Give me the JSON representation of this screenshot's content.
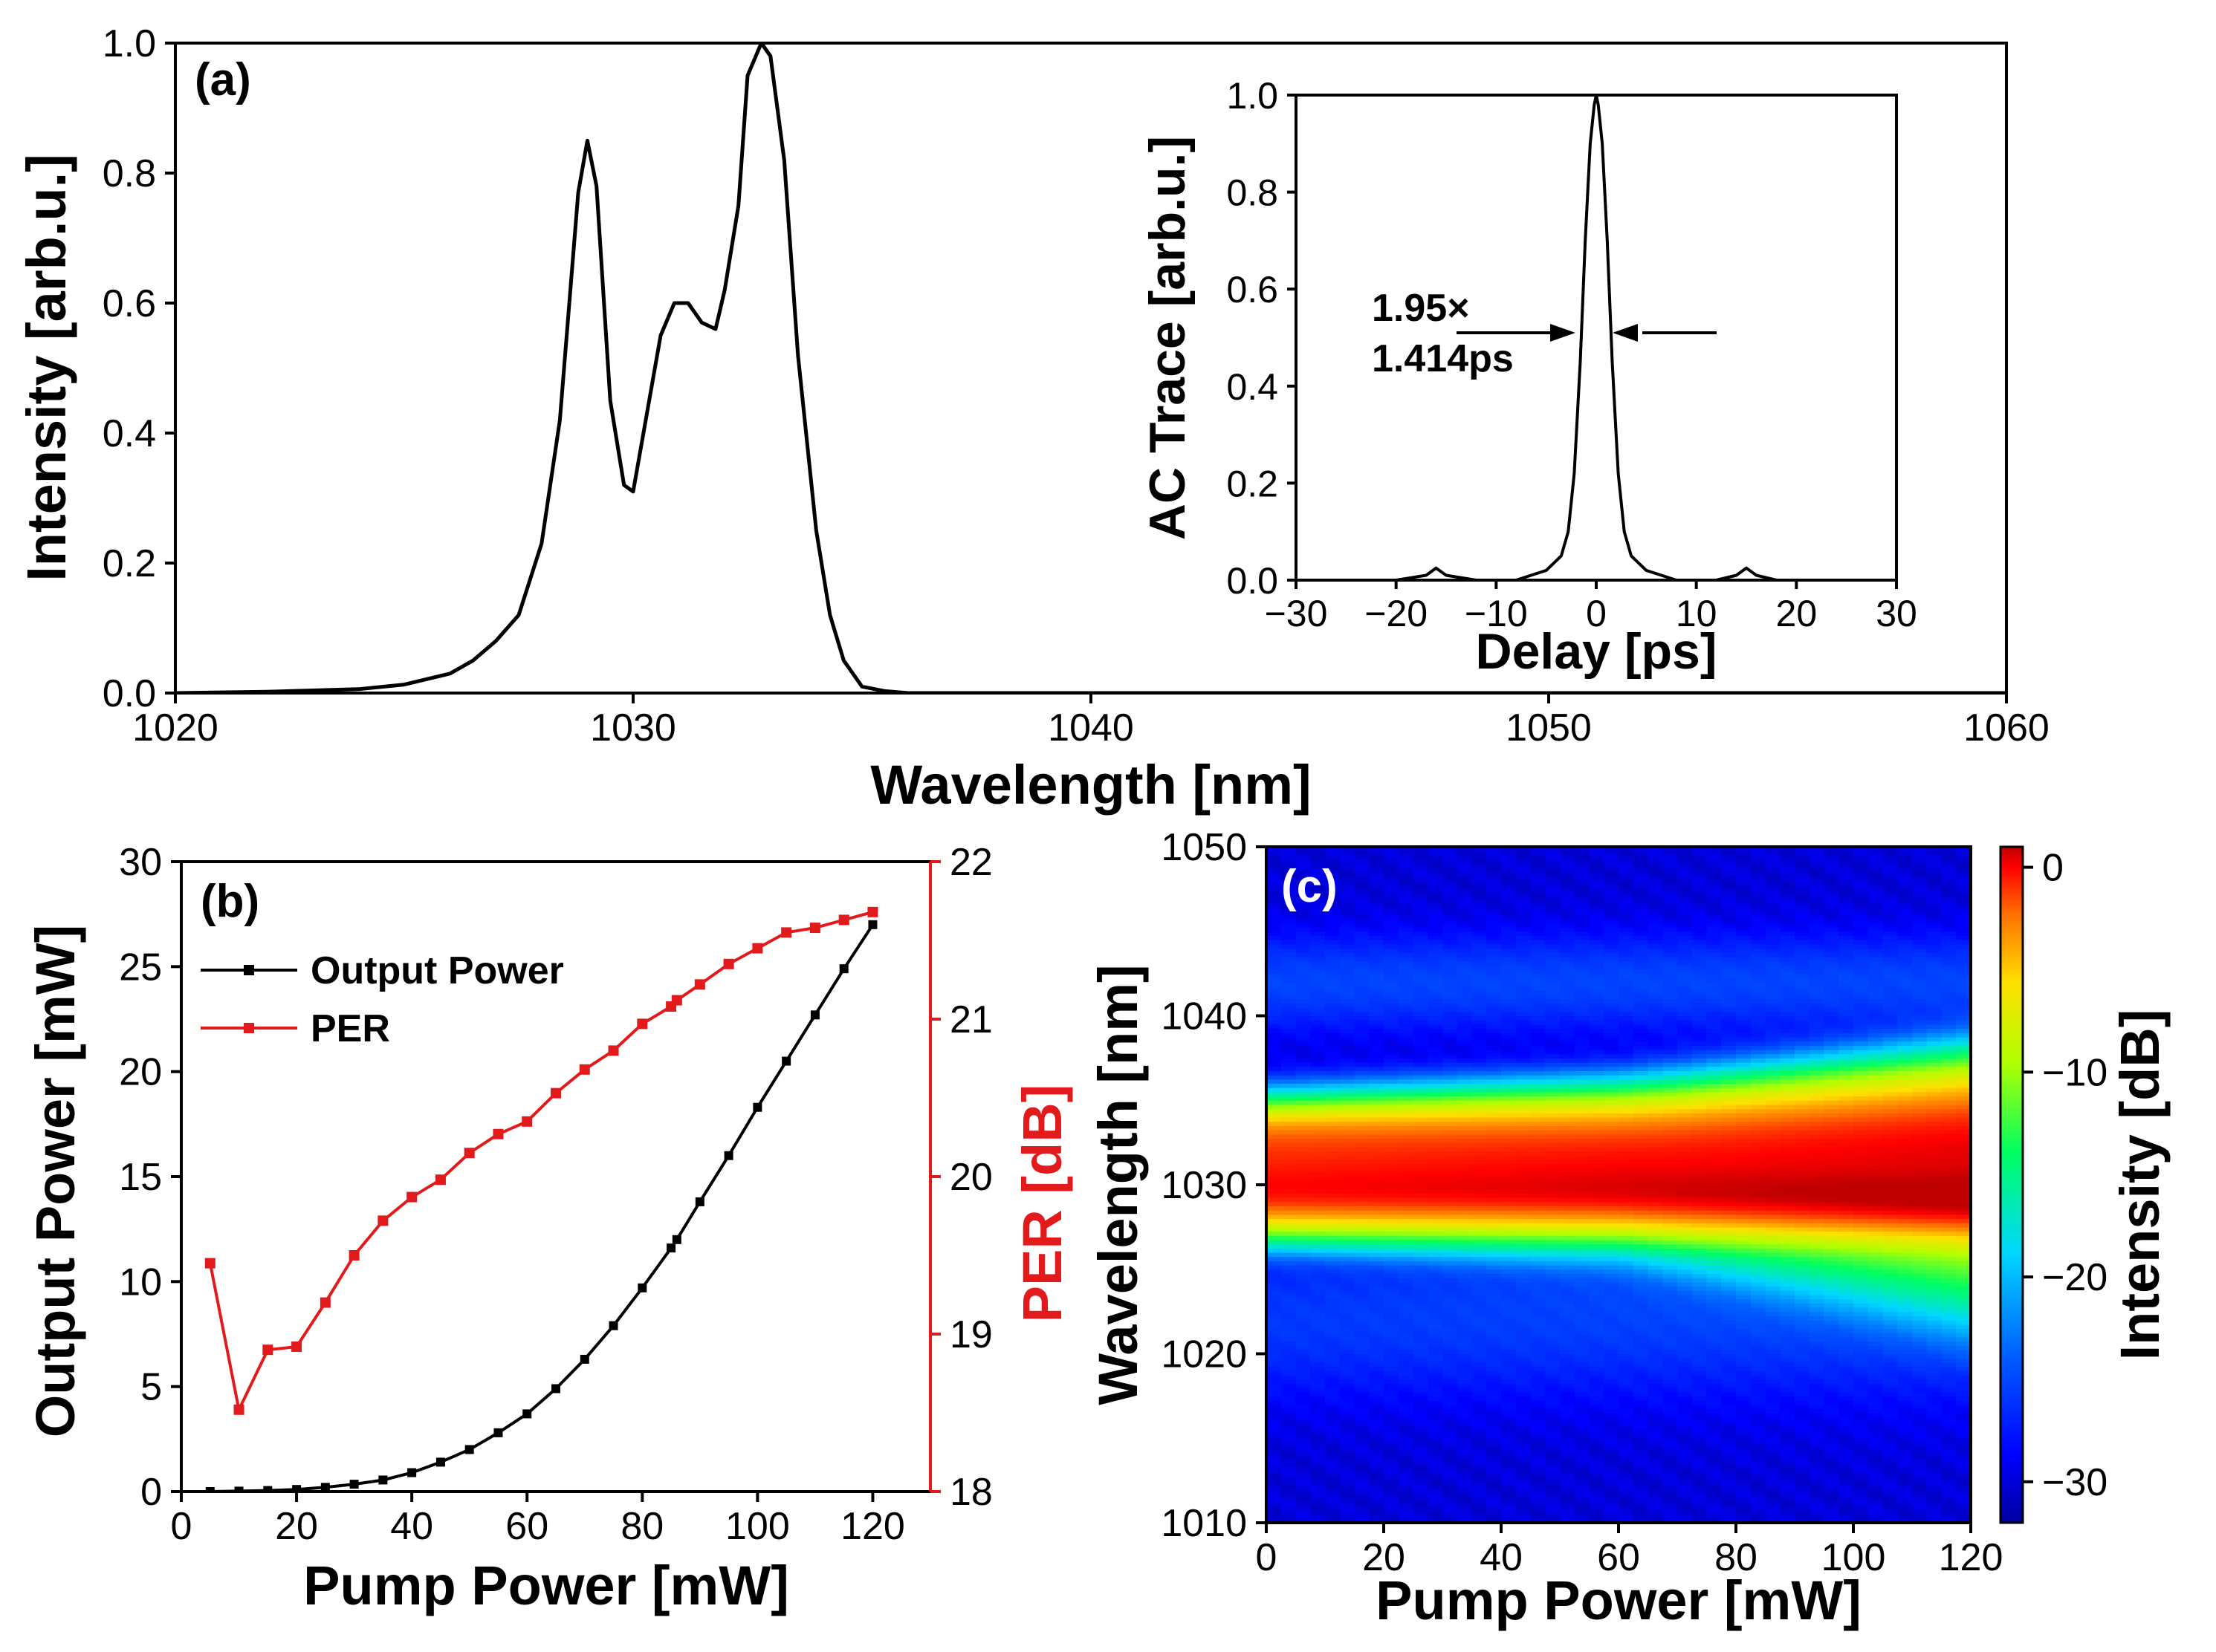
{
  "chart_data": [
    {
      "panel": "(a)",
      "type": "line",
      "title": "",
      "xlabel": "Wavelength [nm]",
      "ylabel": "Intensity [arb.u.]",
      "xlim": [
        1020,
        1060
      ],
      "ylim": [
        0,
        1.0
      ],
      "xticks": [
        1020,
        1030,
        1040,
        1050,
        1060
      ],
      "yticks": [
        0.0,
        0.2,
        0.4,
        0.6,
        0.8,
        1.0
      ],
      "series": [
        {
          "name": "Spectrum",
          "color": "#000000",
          "x": [
            1020,
            1022,
            1024,
            1025,
            1026,
            1026.5,
            1027,
            1027.5,
            1028,
            1028.4,
            1028.8,
            1029.0,
            1029.2,
            1029.5,
            1029.8,
            1030.0,
            1030.3,
            1030.6,
            1030.9,
            1031.2,
            1031.5,
            1031.8,
            1032.0,
            1032.3,
            1032.5,
            1032.8,
            1033.0,
            1033.3,
            1033.6,
            1034.0,
            1034.3,
            1034.6,
            1035.0,
            1035.5,
            1036,
            1037,
            1040,
            1060
          ],
          "y": [
            0.0,
            0.002,
            0.006,
            0.013,
            0.03,
            0.05,
            0.08,
            0.12,
            0.23,
            0.42,
            0.77,
            0.85,
            0.78,
            0.45,
            0.32,
            0.31,
            0.43,
            0.55,
            0.6,
            0.6,
            0.57,
            0.56,
            0.62,
            0.75,
            0.95,
            1.0,
            0.98,
            0.82,
            0.52,
            0.25,
            0.12,
            0.05,
            0.01,
            0.003,
            0.0,
            0.0,
            0.0,
            0.0
          ]
        }
      ]
    },
    {
      "panel": "(a) inset",
      "type": "line",
      "xlabel": "Delay [ps]",
      "ylabel": "AC Trace [arb.u.]",
      "xlim": [
        -30,
        30
      ],
      "ylim": [
        0,
        1.0
      ],
      "xticks": [
        -30,
        -20,
        -10,
        0,
        10,
        20,
        30
      ],
      "yticks": [
        0.0,
        0.2,
        0.4,
        0.6,
        0.8,
        1.0
      ],
      "annotation": [
        "1.95×",
        "1.414ps"
      ],
      "series": [
        {
          "name": "AC Trace",
          "color": "#000000",
          "x": [
            -30,
            -20,
            -17,
            -16,
            -15,
            -12,
            -8,
            -5,
            -3.5,
            -2.8,
            -2.2,
            -1.6,
            -1.1,
            -0.6,
            -0.2,
            0,
            0.2,
            0.6,
            1.1,
            1.6,
            2.2,
            2.8,
            3.5,
            5,
            8,
            12,
            14,
            15,
            16,
            18,
            20,
            30
          ],
          "y": [
            0.0,
            0.0,
            0.01,
            0.025,
            0.01,
            0.0,
            0.0,
            0.02,
            0.05,
            0.1,
            0.22,
            0.45,
            0.7,
            0.9,
            0.98,
            1.0,
            0.98,
            0.9,
            0.7,
            0.45,
            0.22,
            0.1,
            0.05,
            0.02,
            0.0,
            0.0,
            0.01,
            0.025,
            0.01,
            0.0,
            0.0,
            0.0
          ]
        }
      ]
    },
    {
      "panel": "(b)",
      "type": "line",
      "xlabel": "Pump Power [mW]",
      "ylabel": "Output Power [mW]",
      "ylabel_right": "PER [dB]",
      "xlim": [
        0,
        130
      ],
      "ylim": [
        0,
        30
      ],
      "ylim_right": [
        18,
        22
      ],
      "xticks": [
        0,
        20,
        40,
        60,
        80,
        100,
        120
      ],
      "yticks": [
        0,
        5,
        10,
        15,
        20,
        25,
        30
      ],
      "yticks_right": [
        18,
        19,
        20,
        21,
        22
      ],
      "legend": [
        "Output Power",
        "PER"
      ],
      "series": [
        {
          "name": "Output Power",
          "color": "#000000",
          "axis": "left",
          "x": [
            5,
            10,
            15,
            20,
            25,
            30,
            35,
            40,
            45,
            50,
            55,
            60,
            65,
            70,
            75,
            80,
            85,
            86,
            90,
            95,
            100,
            105,
            110,
            115,
            120
          ],
          "y": [
            0.0,
            0.02,
            0.05,
            0.1,
            0.2,
            0.35,
            0.55,
            0.9,
            1.4,
            2.0,
            2.8,
            3.7,
            4.9,
            6.3,
            7.9,
            9.7,
            11.6,
            12.0,
            13.8,
            16.0,
            18.3,
            20.5,
            22.7,
            24.9,
            27.0
          ]
        },
        {
          "name": "PER",
          "color": "#e31a1c",
          "axis": "right",
          "x": [
            5,
            10,
            15,
            20,
            25,
            30,
            35,
            40,
            45,
            50,
            55,
            60,
            65,
            70,
            75,
            80,
            85,
            86,
            90,
            95,
            100,
            105,
            110,
            115,
            120
          ],
          "y": [
            19.45,
            18.52,
            18.9,
            18.92,
            19.2,
            19.5,
            19.72,
            19.87,
            19.98,
            20.15,
            20.27,
            20.35,
            20.53,
            20.68,
            20.8,
            20.97,
            21.08,
            21.12,
            21.22,
            21.35,
            21.45,
            21.55,
            21.58,
            21.63,
            21.68
          ]
        }
      ]
    },
    {
      "panel": "(c)",
      "type": "heatmap",
      "xlabel": "Pump Power [mW]",
      "ylabel": "Wavelength [nm]",
      "colorbar_label": "Intensity [dB]",
      "xlim": [
        0,
        120
      ],
      "ylim": [
        1010,
        1050
      ],
      "zlim": [
        -32,
        1
      ],
      "xticks": [
        0,
        20,
        40,
        60,
        80,
        100,
        120
      ],
      "yticks": [
        1010,
        1020,
        1030,
        1040,
        1050
      ],
      "colorbar_ticks": [
        0,
        -10,
        -20,
        -30
      ],
      "colormap": [
        "#0000a0",
        "#0000ff",
        "#0060ff",
        "#00d8ff",
        "#00ff60",
        "#b0ff00",
        "#ffe000",
        "#ff7000",
        "#ff0000",
        "#c00000"
      ],
      "model": {
        "background_db": -30,
        "bands": [
          {
            "center": [
              [
                0,
                1031.0
              ],
              [
                120,
                1031.5
              ]
            ],
            "width": [
              [
                0,
                2.2
              ],
              [
                60,
                2.4
              ],
              [
                120,
                3.2
              ]
            ],
            "peak_db": [
              [
                0,
                -1
              ],
              [
                120,
                0
              ]
            ]
          },
          {
            "center": [
              [
                0,
                1029.3
              ],
              [
                60,
                1029.3
              ],
              [
                120,
                1029.0
              ]
            ],
            "width": [
              [
                0,
                1.3
              ],
              [
                120,
                1.5
              ]
            ],
            "peak_db": [
              [
                0,
                -4
              ],
              [
                120,
                -1
              ]
            ]
          },
          {
            "center": [
              [
                0,
                1033.0
              ],
              [
                60,
                1033.3
              ],
              [
                120,
                1034.2
              ]
            ],
            "width": [
              [
                0,
                1.2
              ],
              [
                70,
                1.5
              ],
              [
                120,
                2.2
              ]
            ],
            "peak_db": [
              [
                0,
                -6
              ],
              [
                70,
                -8
              ],
              [
                120,
                -6
              ]
            ]
          },
          {
            "center": [
              [
                0,
                1029.0
              ],
              [
                60,
                1028.5
              ],
              [
                120,
                1026.5
              ]
            ],
            "width": [
              [
                0,
                1.6
              ],
              [
                60,
                2.2
              ],
              [
                120,
                3.4
              ]
            ],
            "peak_db": [
              [
                0,
                -12
              ],
              [
                60,
                -15
              ],
              [
                120,
                -12
              ]
            ]
          },
          {
            "center": [
              [
                0,
                1042.0
              ],
              [
                120,
                1042.0
              ]
            ],
            "width": [
              [
                0,
                2.5
              ],
              [
                120,
                2.5
              ]
            ],
            "peak_db": [
              [
                0,
                -27
              ],
              [
                120,
                -27
              ]
            ]
          },
          {
            "center": [
              [
                0,
                1022.0
              ],
              [
                120,
                1023.5
              ]
            ],
            "width": [
              [
                0,
                4.0
              ],
              [
                120,
                5.0
              ]
            ],
            "peak_db": [
              [
                0,
                -28
              ],
              [
                120,
                -26
              ]
            ]
          }
        ]
      }
    }
  ],
  "labels": {
    "a": "(a)",
    "b": "(b)",
    "c": "(c)",
    "ann1": "1.95×",
    "ann2": "1.414ps",
    "legend_out": "Output Power",
    "legend_per": "PER"
  }
}
